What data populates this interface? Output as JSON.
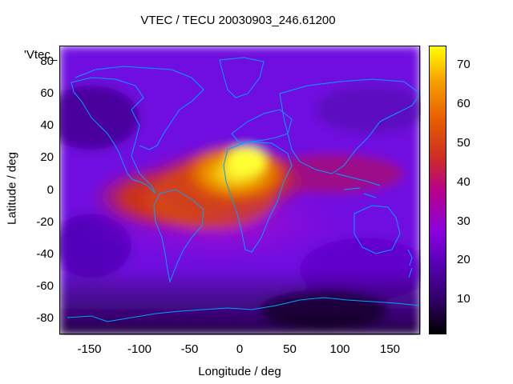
{
  "title": "VTEC / TECU 20030903_246.61200",
  "series_label": "'Vtec_",
  "axes": {
    "xlabel": "Longitude / deg",
    "ylabel": "Latitude / deg",
    "xticks": [
      "-150",
      "-100",
      "-50",
      "0",
      "50",
      "100",
      "150"
    ],
    "yticks": [
      "80",
      "60",
      "40",
      "20",
      "0",
      "-20",
      "-40",
      "-60",
      "-80"
    ],
    "xlim": [
      -180,
      180
    ],
    "ylim": [
      -90,
      90
    ]
  },
  "colorbar": {
    "ticks": [
      "70",
      "60",
      "50",
      "40",
      "30",
      "20",
      "10"
    ],
    "range": [
      1,
      75
    ],
    "colors": [
      "#000000",
      "#5a00b8",
      "#8a00e0",
      "#b8008a",
      "#d03020",
      "#e86000",
      "#f5a000",
      "#ffff00"
    ]
  },
  "coastline_color": "#00a0ff"
}
